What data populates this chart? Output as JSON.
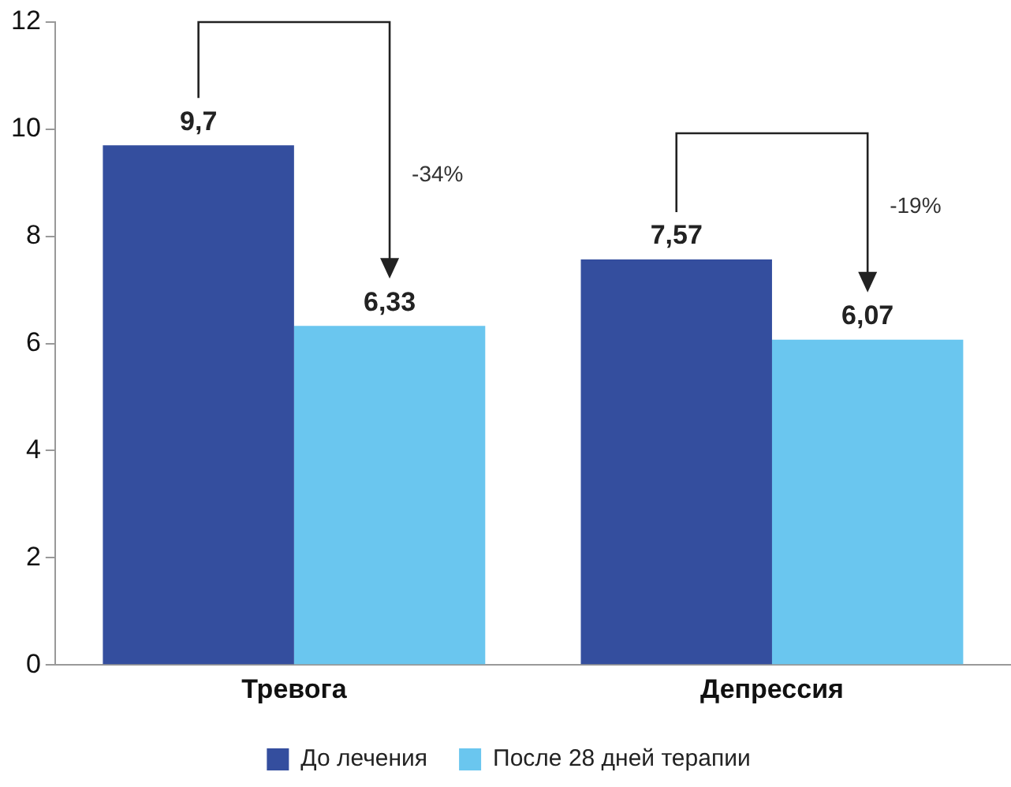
{
  "chart_data": {
    "type": "bar",
    "categories": [
      "Тревога",
      "Депрессия"
    ],
    "series": [
      {
        "name": "До лечения",
        "color": "#344e9e",
        "values": [
          9.7,
          7.57
        ]
      },
      {
        "name": "После 28 дней терапии",
        "color": "#6ac6ef",
        "values": [
          6.33,
          6.07
        ]
      }
    ],
    "value_labels": [
      [
        "9,7",
        "7,57"
      ],
      [
        "6,33",
        "6,07"
      ]
    ],
    "ylim": [
      0,
      12
    ],
    "yticks": [
      0,
      2,
      4,
      6,
      8,
      10,
      12
    ],
    "grid": false,
    "legend": "bottom",
    "annotations": [
      "-34%",
      "-19%"
    ]
  }
}
